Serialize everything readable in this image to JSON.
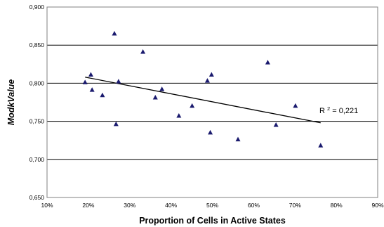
{
  "chart_data": {
    "type": "scatter",
    "xlabel": "Proportion of  Cells in Active States",
    "ylabel": "ModkValue",
    "xlim": [
      0.1,
      0.9
    ],
    "ylim": [
      0.65,
      0.9
    ],
    "x_ticks": [
      0.1,
      0.2,
      0.3,
      0.4,
      0.5,
      0.6,
      0.7,
      0.8,
      0.9
    ],
    "x_tick_labels": [
      "10%",
      "20%",
      "30%",
      "40%",
      "50%",
      "60%",
      "70%",
      "80%",
      "90%"
    ],
    "y_ticks": [
      0.65,
      0.7,
      0.75,
      0.8,
      0.85,
      0.9
    ],
    "y_tick_labels": [
      "0,650",
      "0,700",
      "0,750",
      "0,800",
      "0,850",
      "0,900"
    ],
    "grid": "horizontal",
    "marker": "triangle",
    "marker_color": "#1a1a6e",
    "points": [
      {
        "x": 0.192,
        "y": 0.801
      },
      {
        "x": 0.206,
        "y": 0.811
      },
      {
        "x": 0.209,
        "y": 0.791
      },
      {
        "x": 0.234,
        "y": 0.784
      },
      {
        "x": 0.263,
        "y": 0.865
      },
      {
        "x": 0.267,
        "y": 0.746
      },
      {
        "x": 0.273,
        "y": 0.802
      },
      {
        "x": 0.332,
        "y": 0.841
      },
      {
        "x": 0.362,
        "y": 0.781
      },
      {
        "x": 0.378,
        "y": 0.792
      },
      {
        "x": 0.419,
        "y": 0.757
      },
      {
        "x": 0.451,
        "y": 0.77
      },
      {
        "x": 0.488,
        "y": 0.803
      },
      {
        "x": 0.495,
        "y": 0.735
      },
      {
        "x": 0.498,
        "y": 0.811
      },
      {
        "x": 0.562,
        "y": 0.726
      },
      {
        "x": 0.634,
        "y": 0.827
      },
      {
        "x": 0.654,
        "y": 0.745
      },
      {
        "x": 0.701,
        "y": 0.77
      },
      {
        "x": 0.762,
        "y": 0.718
      }
    ],
    "trendline": {
      "x1": 0.192,
      "y1": 0.808,
      "x2": 0.762,
      "y2": 0.748
    },
    "annotation": {
      "base": "R",
      "exponent": "2",
      "text": " = 0,221"
    }
  }
}
